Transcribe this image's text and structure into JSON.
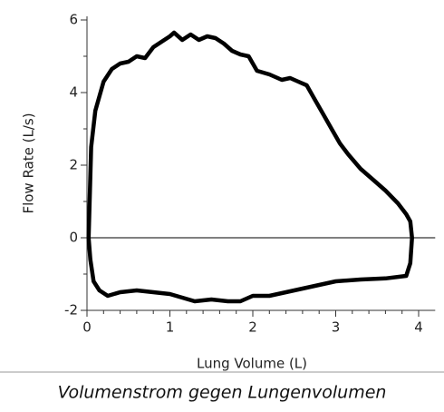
{
  "chart_data": {
    "type": "line",
    "xlabel": "Lung Volume (L)",
    "ylabel": "Flow Rate (L/s)",
    "caption": "Volumenstrom gegen Lungenvolumen",
    "xlim": [
      0,
      4.2
    ],
    "ylim": [
      -2,
      6.1
    ],
    "xticks": [
      0,
      1,
      2,
      3,
      4
    ],
    "yticks": [
      -2,
      0,
      2,
      4,
      6
    ],
    "xminorticks": [
      0.2,
      0.4,
      0.6,
      0.8,
      1.2,
      1.4,
      1.6,
      1.8,
      2.2,
      2.4,
      2.6,
      2.8,
      3.2,
      3.4,
      3.6,
      3.8
    ],
    "yminorticks": [
      -1,
      1,
      3,
      5
    ],
    "hline": 0,
    "hline_color": "#808080",
    "x": [
      0.02,
      0.05,
      0.1,
      0.2,
      0.3,
      0.4,
      0.5,
      0.6,
      0.7,
      0.8,
      0.9,
      1.0,
      1.05,
      1.15,
      1.25,
      1.35,
      1.45,
      1.55,
      1.65,
      1.75,
      1.85,
      1.95,
      2.05,
      2.2,
      2.35,
      2.45,
      2.55,
      2.65,
      2.75,
      2.85,
      2.95,
      3.05,
      3.15,
      3.3,
      3.45,
      3.6,
      3.75,
      3.85,
      3.9,
      3.92,
      3.9,
      3.85,
      3.6,
      3.3,
      3.0,
      2.8,
      2.6,
      2.4,
      2.2,
      2.0,
      1.85,
      1.7,
      1.5,
      1.3,
      1.15,
      1.0,
      0.8,
      0.6,
      0.4,
      0.25,
      0.15,
      0.08,
      0.04,
      0.02
    ],
    "series": [
      {
        "color": "#000000",
        "values": [
          0,
          2.5,
          3.5,
          4.3,
          4.65,
          4.8,
          4.85,
          5.0,
          4.95,
          5.25,
          5.4,
          5.55,
          5.65,
          5.45,
          5.6,
          5.45,
          5.55,
          5.5,
          5.35,
          5.15,
          5.05,
          5.0,
          4.6,
          4.5,
          4.35,
          4.4,
          4.3,
          4.2,
          3.8,
          3.4,
          3.0,
          2.6,
          2.3,
          1.9,
          1.6,
          1.3,
          0.95,
          0.65,
          0.45,
          0,
          -0.7,
          -1.05,
          -1.12,
          -1.15,
          -1.2,
          -1.3,
          -1.4,
          -1.5,
          -1.6,
          -1.6,
          -1.75,
          -1.75,
          -1.7,
          -1.75,
          -1.65,
          -1.55,
          -1.5,
          -1.45,
          -1.5,
          -1.6,
          -1.45,
          -1.2,
          -0.6,
          0
        ]
      }
    ]
  }
}
